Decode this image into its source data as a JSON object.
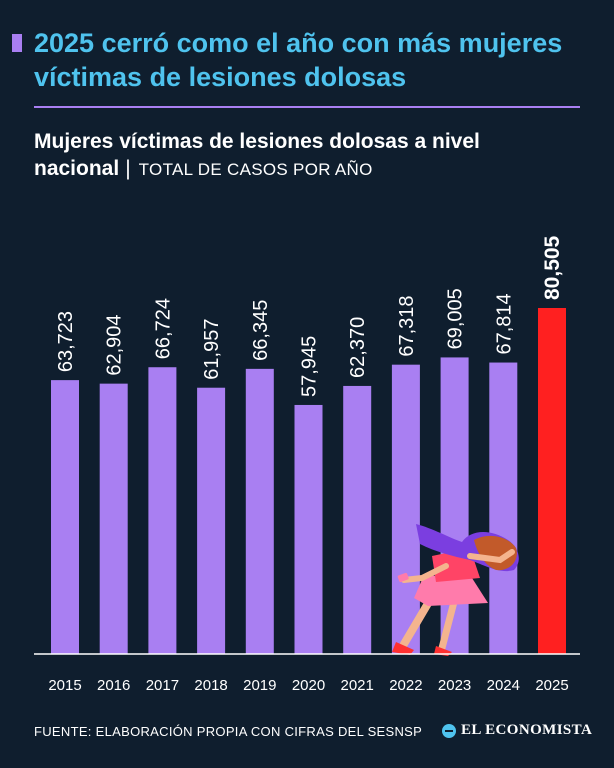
{
  "header": {
    "title": "2025 cerró como el año con más mujeres víctimas de lesiones dolosas",
    "subtitle_bold": "Mujeres víctimas de lesiones dolosas a nivel nacional",
    "subtitle_separator": "|",
    "subtitle_unit": "TOTAL DE CASOS POR AÑO"
  },
  "chart_data": {
    "type": "bar",
    "title": "Mujeres víctimas de lesiones dolosas a nivel nacional",
    "ylabel": "Total de casos por año",
    "xlabel": "",
    "categories": [
      "2015",
      "2016",
      "2017",
      "2018",
      "2019",
      "2020",
      "2021",
      "2022",
      "2023",
      "2024",
      "2025"
    ],
    "values": [
      63723,
      62904,
      66724,
      61957,
      66345,
      57945,
      62370,
      67318,
      69005,
      67814,
      80505
    ],
    "labels": [
      "63,723",
      "62,904",
      "66,724",
      "61,957",
      "66,345",
      "57,945",
      "62,370",
      "67,318",
      "69,005",
      "67,814",
      "80,505"
    ],
    "ylim": [
      0,
      80505
    ],
    "grid": false,
    "highlight_category": "2025",
    "colors": {
      "bar": "#a97ff2",
      "highlight": "#ff2020"
    }
  },
  "footer": {
    "source": "FUENTE: ELABORACIÓN PROPIA CON CIFRAS DEL SESNSP",
    "brand": "EL ECONOMISTA"
  },
  "colors": {
    "background": "#0f1e2e",
    "title": "#4fc3ee",
    "accent": "#a97ff2"
  },
  "illustration": {
    "icon": "falling-woman-illustration"
  }
}
